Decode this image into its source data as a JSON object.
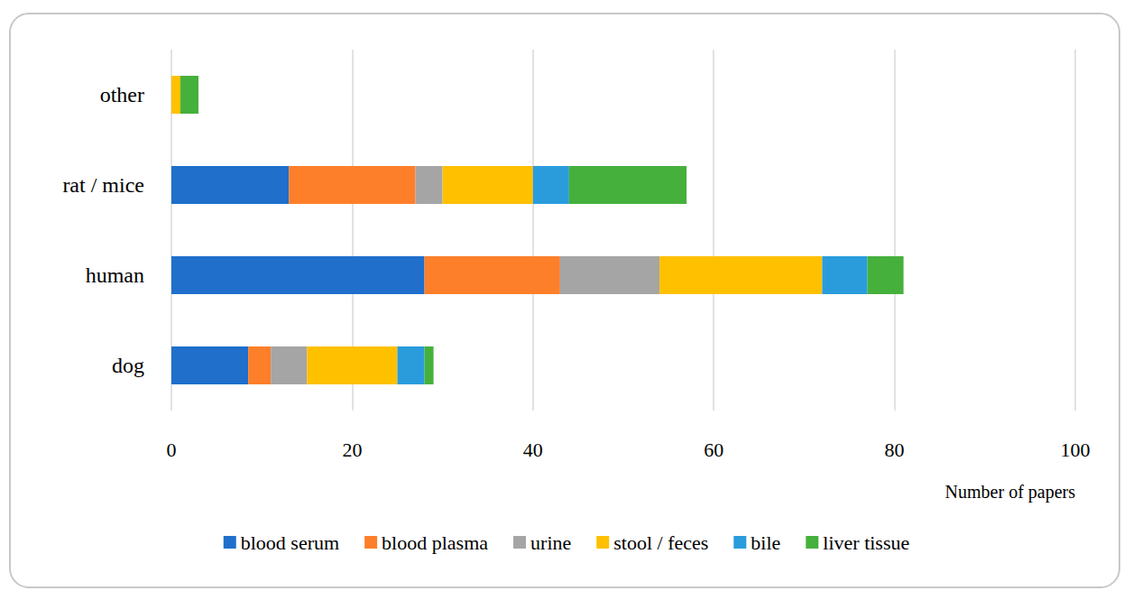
{
  "chart_data": {
    "type": "bar",
    "orientation": "horizontal",
    "stacked": true,
    "grid": true,
    "legend": "bottom",
    "x_label": "Number of papers",
    "categories": [
      "dog",
      "human",
      "rat / mice",
      "other"
    ],
    "series": [
      {
        "name": "blood serum",
        "color": "#1f6fcb",
        "values": [
          8.5,
          28,
          13,
          0
        ]
      },
      {
        "name": "blood plasma",
        "color": "#fd7f2a",
        "values": [
          2.5,
          15,
          14,
          0
        ]
      },
      {
        "name": "urine",
        "color": "#a5a5a5",
        "values": [
          4,
          11,
          3,
          0
        ]
      },
      {
        "name": "stool / feces",
        "color": "#ffc000",
        "values": [
          10,
          18,
          10,
          1
        ]
      },
      {
        "name": "bile",
        "color": "#2a9cdc",
        "values": [
          3,
          5,
          4,
          0
        ]
      },
      {
        "name": "liver tissue",
        "color": "#46b03c",
        "values": [
          1,
          4,
          13,
          2
        ]
      }
    ],
    "xlim": [
      0,
      100
    ],
    "xticks": [
      0,
      20,
      40,
      60,
      80,
      100
    ]
  }
}
